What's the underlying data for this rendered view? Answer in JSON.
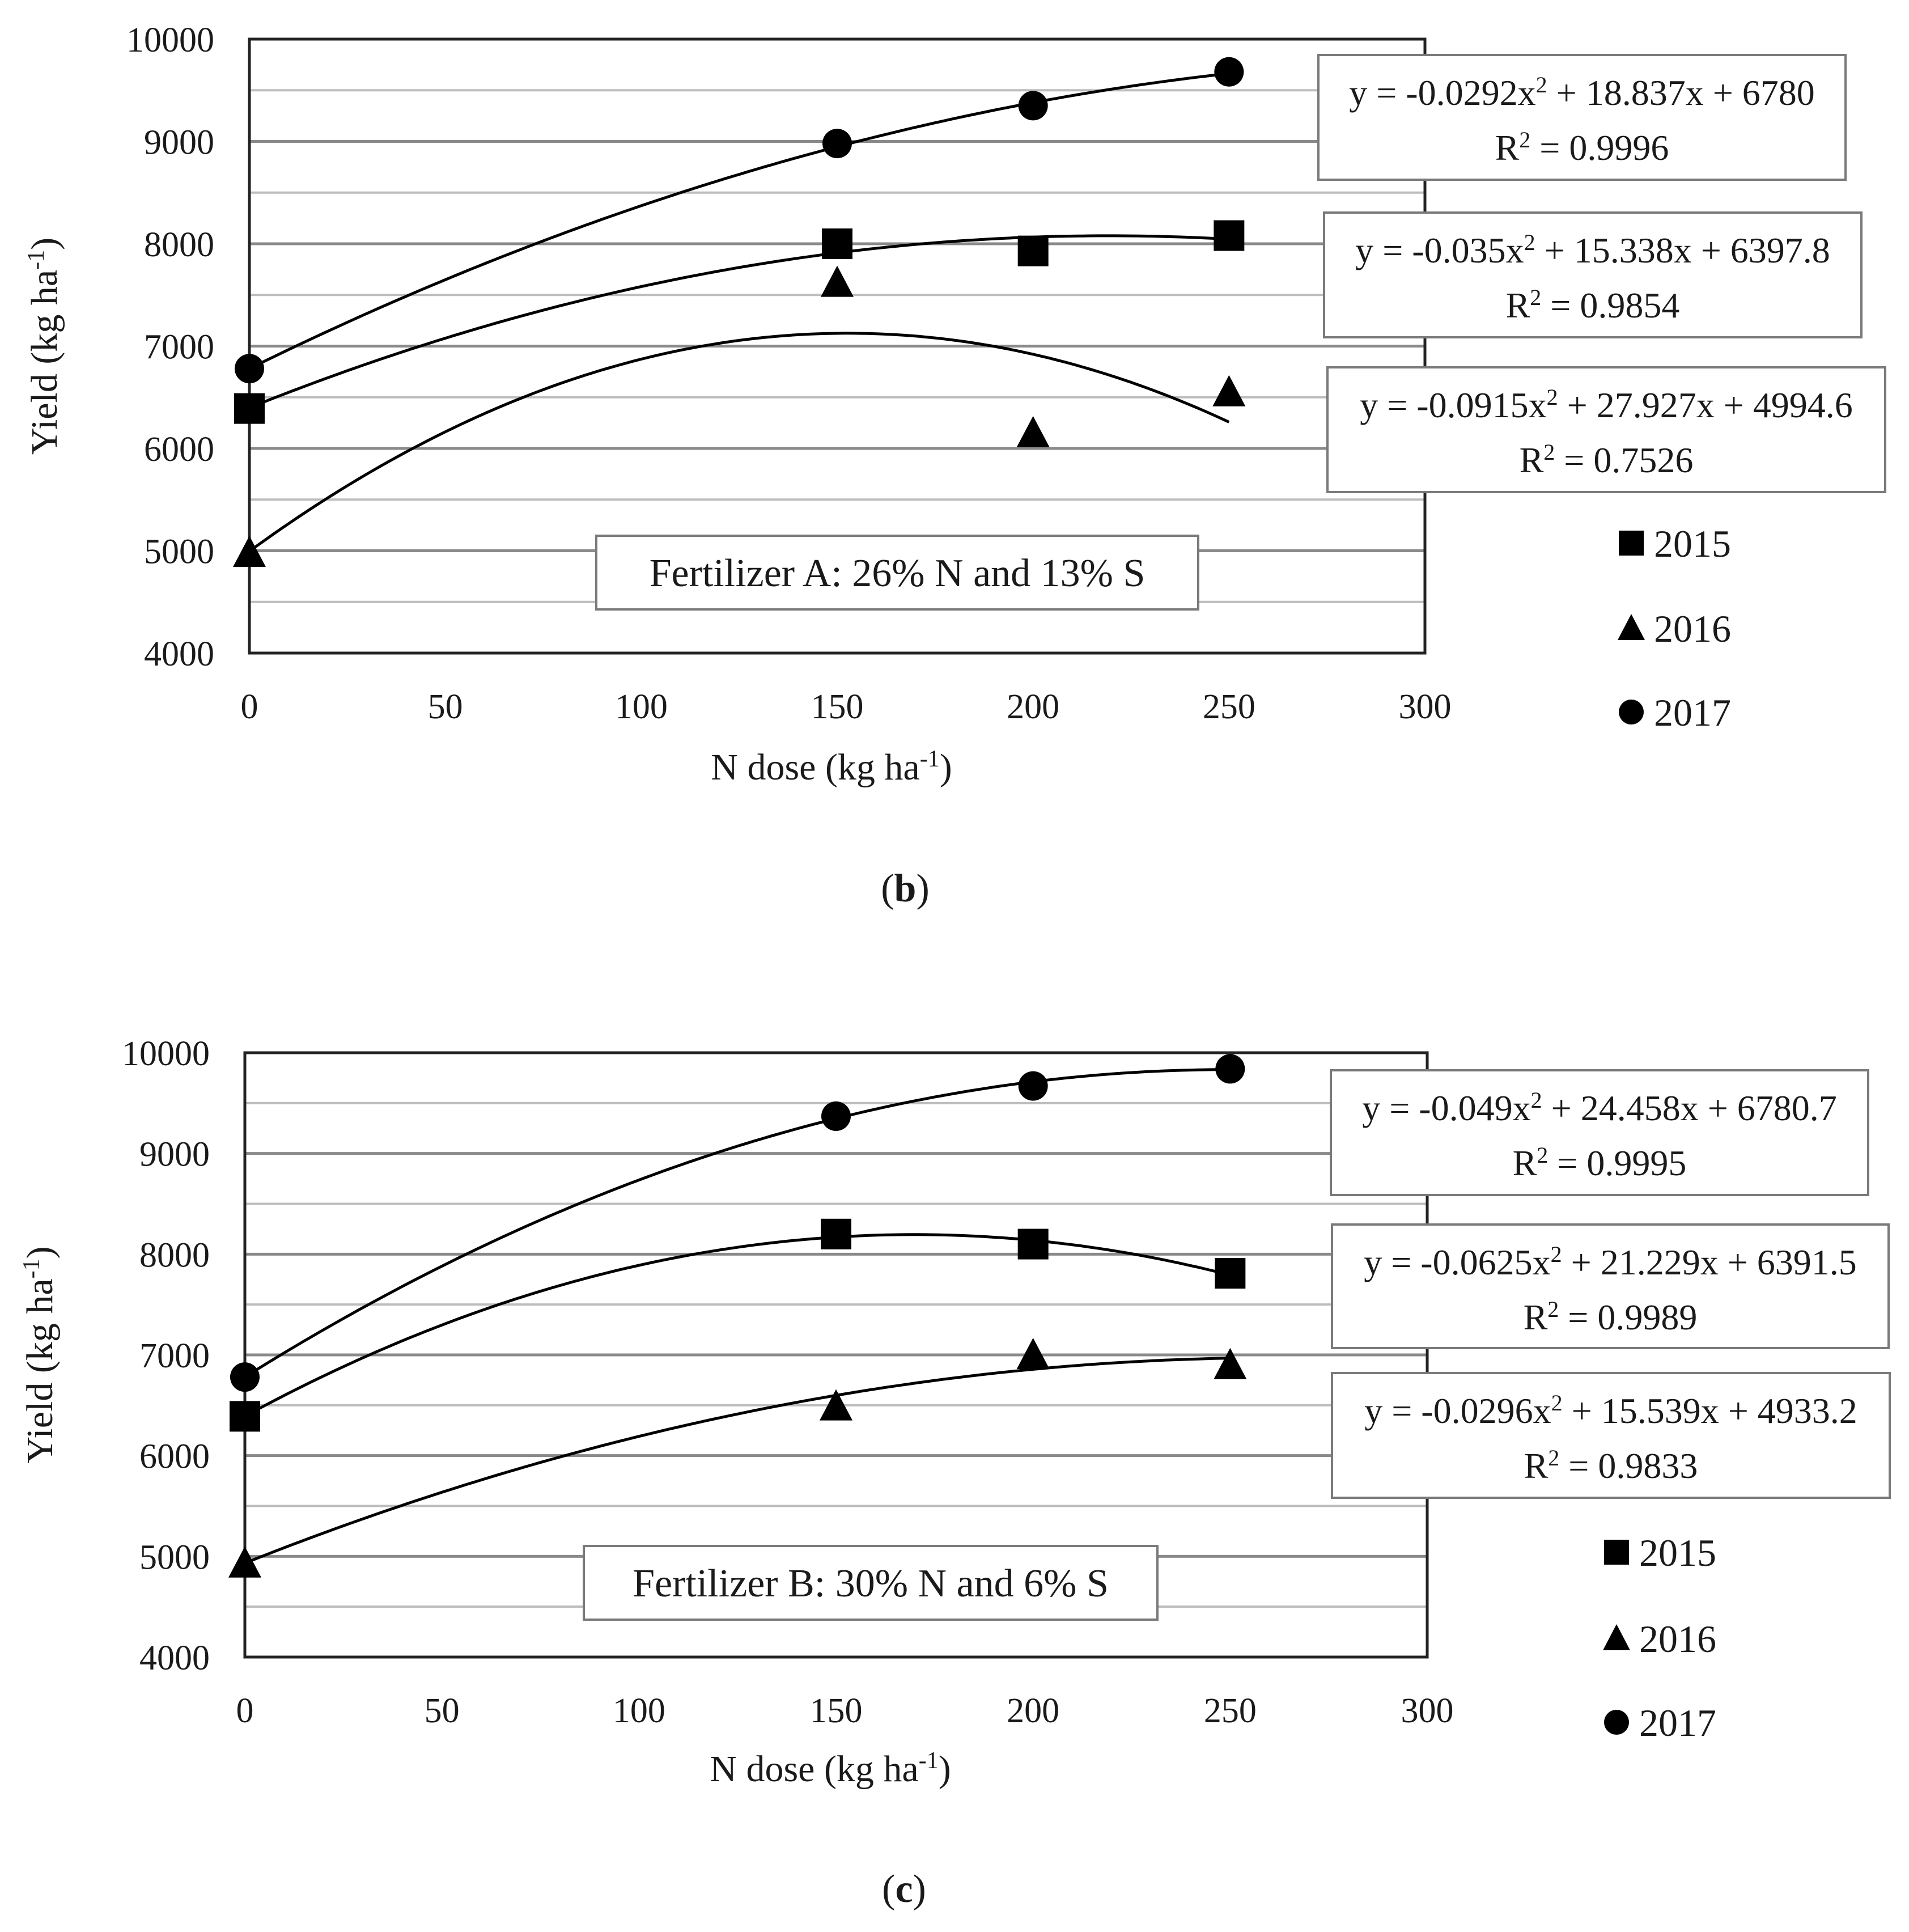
{
  "chart_data": [
    {
      "panel_label": "b",
      "type": "scatter",
      "xlabel": {
        "main": "N dose (kg ha",
        "sup": "-1",
        "close": ")"
      },
      "ylabel": {
        "main": "Yield (kg ha",
        "sup": "-1",
        "close": ")"
      },
      "xlim": [
        0,
        300
      ],
      "ylim": [
        4000,
        10000
      ],
      "xticks": [
        0,
        50,
        100,
        150,
        200,
        250,
        300
      ],
      "yticks": [
        4000,
        5000,
        6000,
        7000,
        8000,
        9000,
        10000
      ],
      "minor_grid_step": 500,
      "annotation": "Fertilizer A: 26% N and 13% S",
      "series": [
        {
          "name": "2017",
          "marker": "circle",
          "points": [
            [
              0,
              6780
            ],
            [
              150,
              8980
            ],
            [
              200,
              9350
            ],
            [
              250,
              9680
            ]
          ],
          "fit": {
            "a": -0.0292,
            "b": 18.837,
            "c": 6780,
            "x_range": [
              0,
              250
            ]
          },
          "equation": {
            "pre": "y = -0.0292x",
            "sup": "2",
            "post": " + 18.837x + 6780"
          },
          "r2": {
            "pre": "R",
            "sup": "2",
            "post": " = 0.9996"
          }
        },
        {
          "name": "2015",
          "marker": "square",
          "points": [
            [
              0,
              6390
            ],
            [
              150,
              8000
            ],
            [
              200,
              7930
            ],
            [
              250,
              8080
            ]
          ],
          "fit": {
            "a": -0.035,
            "b": 15.338,
            "c": 6397.8,
            "x_range": [
              0,
              250
            ]
          },
          "equation": {
            "pre": "y = -0.035x",
            "sup": "2",
            "post": " + 15.338x + 6397.8"
          },
          "r2": {
            "pre": "R",
            "sup": "2",
            "post": " = 0.9854"
          }
        },
        {
          "name": "2016",
          "marker": "triangle",
          "points": [
            [
              0,
              4980
            ],
            [
              150,
              7620
            ],
            [
              200,
              6150
            ],
            [
              250,
              6550
            ]
          ],
          "fit": {
            "a": -0.0915,
            "b": 27.927,
            "c": 4994.6,
            "x_range": [
              0,
              250
            ]
          },
          "equation": {
            "pre": "y = -0.0915x",
            "sup": "2",
            "post": " + 27.927x + 4994.6"
          },
          "r2": {
            "pre": "R",
            "sup": "2",
            "post": " = 0.7526"
          }
        }
      ],
      "legend": [
        {
          "label": "2015",
          "marker": "square"
        },
        {
          "label": "2016",
          "marker": "triangle"
        },
        {
          "label": "2017",
          "marker": "circle"
        }
      ]
    },
    {
      "panel_label": "c",
      "type": "scatter",
      "xlabel": {
        "main": "N dose (kg ha",
        "sup": "-1",
        "close": ")"
      },
      "ylabel": {
        "main": "Yield (kg ha",
        "sup": "-1",
        "close": ")"
      },
      "xlim": [
        0,
        300
      ],
      "ylim": [
        4000,
        10000
      ],
      "xticks": [
        0,
        50,
        100,
        150,
        200,
        250,
        300
      ],
      "yticks": [
        4000,
        5000,
        6000,
        7000,
        8000,
        9000,
        10000
      ],
      "minor_grid_step": 500,
      "annotation": "Fertilizer B: 30% N and 6% S",
      "series": [
        {
          "name": "2017",
          "marker": "circle",
          "points": [
            [
              0,
              6780
            ],
            [
              150,
              9370
            ],
            [
              200,
              9670
            ],
            [
              250,
              9840
            ]
          ],
          "fit": {
            "a": -0.049,
            "b": 24.458,
            "c": 6780.7,
            "x_range": [
              0,
              250
            ]
          },
          "equation": {
            "pre": "y = -0.049x",
            "sup": "2",
            "post": " + 24.458x + 6780.7"
          },
          "r2": {
            "pre": "R",
            "sup": "2",
            "post": " = 0.9995"
          }
        },
        {
          "name": "2015",
          "marker": "square",
          "points": [
            [
              0,
              6390
            ],
            [
              150,
              8200
            ],
            [
              200,
              8100
            ],
            [
              250,
              7810
            ]
          ],
          "fit": {
            "a": -0.0625,
            "b": 21.229,
            "c": 6391.5,
            "x_range": [
              0,
              250
            ]
          },
          "equation": {
            "pre": "y = -0.0625x",
            "sup": "2",
            "post": " + 21.229x + 6391.5"
          },
          "r2": {
            "pre": "R",
            "sup": "2",
            "post": " = 0.9989"
          }
        },
        {
          "name": "2016",
          "marker": "triangle",
          "points": [
            [
              0,
              4930
            ],
            [
              150,
              6490
            ],
            [
              200,
              7000
            ],
            [
              250,
              6900
            ]
          ],
          "fit": {
            "a": -0.0296,
            "b": 15.539,
            "c": 4933.2,
            "x_range": [
              0,
              250
            ]
          },
          "equation": {
            "pre": "y = -0.0296x",
            "sup": "2",
            "post": " + 15.539x + 4933.2"
          },
          "r2": {
            "pre": "R",
            "sup": "2",
            "post": " = 0.9833"
          }
        }
      ],
      "legend": [
        {
          "label": "2015",
          "marker": "square"
        },
        {
          "label": "2016",
          "marker": "triangle"
        },
        {
          "label": "2017",
          "marker": "circle"
        }
      ]
    }
  ]
}
